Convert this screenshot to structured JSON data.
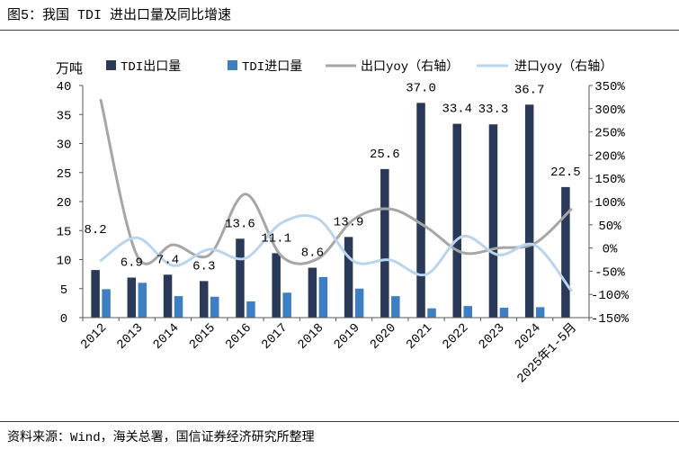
{
  "source": "资料来源：Wind，海关总署，国信证券经济研究所整理",
  "chart_data": {
    "type": "bar",
    "title": "图5：我国 TDI 进出口量及同比增速",
    "ylabel": "万吨",
    "categories": [
      "2012",
      "2013",
      "2014",
      "2015",
      "2016",
      "2017",
      "2018",
      "2019",
      "2020",
      "2021",
      "2022",
      "2023",
      "2024",
      "2025年1-5月"
    ],
    "series": [
      {
        "name": "TDI出口量",
        "type": "bar",
        "secondary_axis": false,
        "color": "#2a3957",
        "data_labels": true,
        "values": [
          8.2,
          6.9,
          7.4,
          6.3,
          13.6,
          11.1,
          8.6,
          13.9,
          25.6,
          37.0,
          33.4,
          33.3,
          36.7,
          22.5
        ]
      },
      {
        "name": "TDI进口量",
        "type": "bar",
        "secondary_axis": false,
        "color": "#3d7fc2",
        "data_labels": false,
        "values": [
          4.9,
          6.0,
          3.7,
          3.6,
          2.8,
          4.3,
          7.0,
          5.0,
          3.7,
          1.6,
          2.0,
          1.7,
          1.8,
          null
        ]
      },
      {
        "name": "出口yoy（右轴）",
        "type": "line",
        "secondary_axis": true,
        "smooth": true,
        "color": "#a6a6a6",
        "values": [
          318,
          -16,
          7,
          -15,
          116,
          -18,
          -23,
          62,
          84,
          45,
          -10,
          0,
          10,
          83
        ]
      },
      {
        "name": "进口yoy（右轴）",
        "type": "line",
        "secondary_axis": true,
        "smooth": true,
        "color": "#b9d5ee",
        "values": [
          -27,
          22,
          -38,
          -3,
          -22,
          54,
          63,
          -29,
          -26,
          -57,
          25,
          -15,
          6,
          -91
        ]
      }
    ],
    "y_left": {
      "range": [
        0,
        40
      ],
      "ticks": [
        0,
        5,
        10,
        15,
        20,
        25,
        30,
        35,
        40
      ]
    },
    "y_right": {
      "range": [
        -150,
        350
      ],
      "unit": "%",
      "ticks": [
        -150,
        -100,
        -50,
        0,
        50,
        100,
        150,
        200,
        250,
        300,
        350
      ]
    },
    "legend": "top",
    "grid": false
  }
}
